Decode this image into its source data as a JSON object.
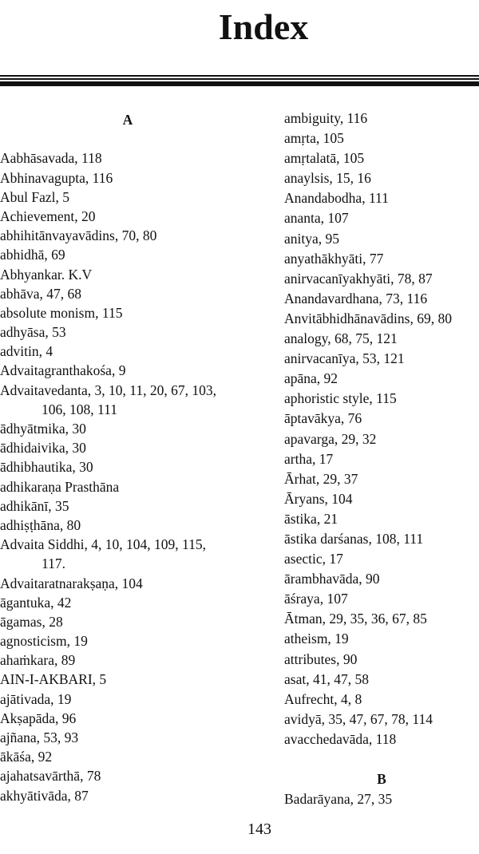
{
  "title": "Index",
  "left_column": [
    {
      "type": "head",
      "text": "A"
    },
    {
      "type": "blank",
      "text": ""
    },
    {
      "type": "entry",
      "text": "Aabhāsavada, 118"
    },
    {
      "type": "entry",
      "text": "Abhinavagupta, 116"
    },
    {
      "type": "entry",
      "text": "Abul Fazl, 5"
    },
    {
      "type": "entry",
      "text": "Achievement, 20"
    },
    {
      "type": "entry",
      "text": "abhihitānvayavādins, 70, 80"
    },
    {
      "type": "entry",
      "text": "abhidhā, 69"
    },
    {
      "type": "entry",
      "text": "Abhyankar. K.V"
    },
    {
      "type": "entry",
      "text": "abhāva, 47, 68"
    },
    {
      "type": "entry",
      "text": "absolute monism, 115"
    },
    {
      "type": "entry",
      "text": "adhyāsa, 53"
    },
    {
      "type": "entry",
      "text": "advitin, 4"
    },
    {
      "type": "entry",
      "text": "Advaitagranthakośa, 9"
    },
    {
      "type": "entry",
      "text": "Advaitavedanta, 3, 10, 11, 20, 67, 103,"
    },
    {
      "type": "cont",
      "text": "106, 108, 111"
    },
    {
      "type": "entry",
      "text": "ādhyātmika, 30"
    },
    {
      "type": "entry",
      "text": "ādhidaivika, 30"
    },
    {
      "type": "entry",
      "text": "ādhibhautika, 30"
    },
    {
      "type": "entry",
      "text": "adhikaraṇa Prasthāna"
    },
    {
      "type": "entry",
      "text": "adhikānī, 35"
    },
    {
      "type": "entry",
      "text": "adhiṣṭhāna, 80"
    },
    {
      "type": "entry",
      "text": "Advaita Siddhi, 4, 10, 104, 109, 115,"
    },
    {
      "type": "cont",
      "text": "117."
    },
    {
      "type": "entry",
      "text": "Advaitaratnarakṣaṇa, 104"
    },
    {
      "type": "entry",
      "text": "āgantuka, 42"
    },
    {
      "type": "entry",
      "text": "āgamas, 28"
    },
    {
      "type": "entry",
      "text": "agnosticism, 19"
    },
    {
      "type": "entry",
      "text": "ahaṁkara, 89"
    },
    {
      "type": "entry",
      "text": "AIN-I-AKBARI, 5"
    },
    {
      "type": "entry",
      "text": "ajātivada, 19"
    },
    {
      "type": "entry",
      "text": "Akṣapāda, 96"
    },
    {
      "type": "entry",
      "text": "ajñana, 53, 93"
    },
    {
      "type": "entry",
      "text": "ākāśa, 92"
    },
    {
      "type": "entry",
      "text": "ajahatsavārthā, 78"
    },
    {
      "type": "entry",
      "text": "akhyātivāda, 87"
    }
  ],
  "right_column": [
    {
      "type": "entry",
      "text": "ambiguity, 116"
    },
    {
      "type": "entry",
      "text": "amṛta, 105"
    },
    {
      "type": "entry",
      "text": "amṛtalatā, 105"
    },
    {
      "type": "entry",
      "text": "anaylsis, 15, 16"
    },
    {
      "type": "entry",
      "text": "Anandabodha, 111"
    },
    {
      "type": "entry",
      "text": "ananta, 107"
    },
    {
      "type": "entry",
      "text": "anitya, 95"
    },
    {
      "type": "entry",
      "text": "anyathākhyāti, 77"
    },
    {
      "type": "entry",
      "text": "anirvacanīyakhyāti, 78, 87"
    },
    {
      "type": "entry",
      "text": "Anandavardhana, 73, 116"
    },
    {
      "type": "entry",
      "text": "Anvitābhidhānavādins, 69, 80"
    },
    {
      "type": "entry",
      "text": "analogy, 68, 75, 121"
    },
    {
      "type": "entry",
      "text": "anirvacanīya, 53, 121"
    },
    {
      "type": "entry",
      "text": "apāna, 92"
    },
    {
      "type": "entry",
      "text": "aphoristic style, 115"
    },
    {
      "type": "entry",
      "text": "āptavākya, 76"
    },
    {
      "type": "entry",
      "text": "apavarga, 29, 32"
    },
    {
      "type": "entry",
      "text": "artha, 17"
    },
    {
      "type": "entry",
      "text": "Ārhat, 29, 37"
    },
    {
      "type": "entry",
      "text": "Āryans, 104"
    },
    {
      "type": "entry",
      "text": "āstika, 21"
    },
    {
      "type": "entry",
      "text": "āstika darśanas, 108, 111"
    },
    {
      "type": "entry",
      "text": "asectic, 17"
    },
    {
      "type": "entry",
      "text": "ārambhavāda, 90"
    },
    {
      "type": "entry",
      "text": "āśraya, 107"
    },
    {
      "type": "entry",
      "text": "Ātman, 29, 35, 36, 67, 85"
    },
    {
      "type": "entry",
      "text": "atheism, 19"
    },
    {
      "type": "entry",
      "text": "attributes, 90"
    },
    {
      "type": "entry",
      "text": "asat, 41, 47, 58"
    },
    {
      "type": "entry",
      "text": "Aufrecht, 4, 8"
    },
    {
      "type": "entry",
      "text": "avidyā, 35, 47, 67, 78, 114"
    },
    {
      "type": "entry",
      "text": "avacchedavāda, 118"
    },
    {
      "type": "blank",
      "text": ""
    },
    {
      "type": "head",
      "text": "B"
    },
    {
      "type": "entry",
      "text": "Badarāyana, 27, 35"
    }
  ],
  "page_number": "143"
}
